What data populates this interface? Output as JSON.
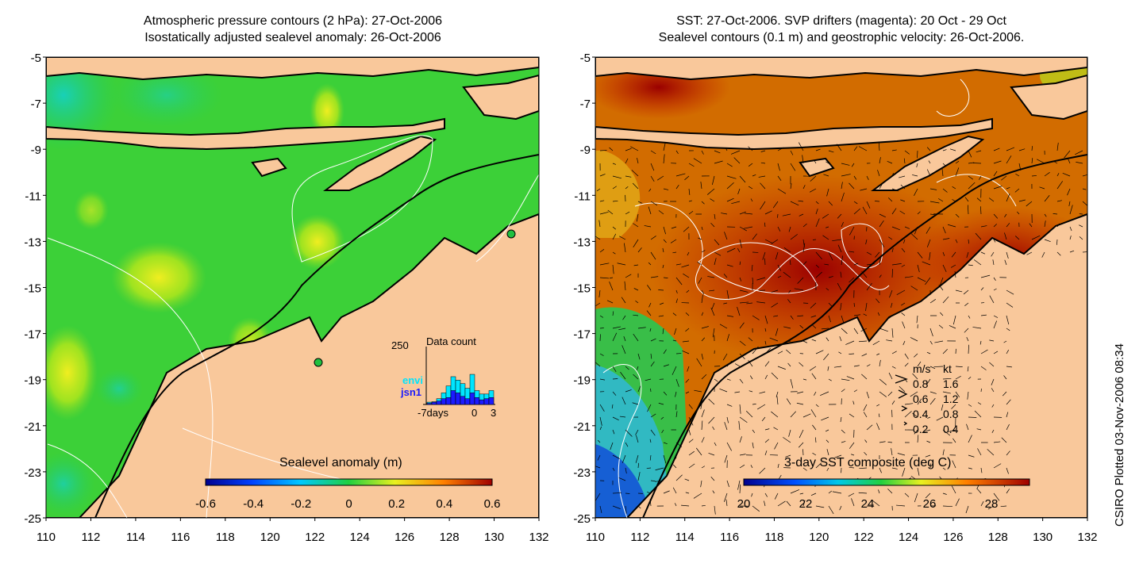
{
  "left_panel": {
    "title_line1": "Atmospheric pressure contours (2 hPa): 27-Oct-2006",
    "title_line2": "Isostatically adjusted sealevel anomaly: 26-Oct-2006",
    "colorbar_label": "Sealevel anomaly (m)",
    "colorbar_ticks": [
      "-0.6",
      "-0.4",
      "-0.2",
      "0",
      "0.2",
      "0.4",
      "0.6"
    ],
    "inset": {
      "title": "Data count",
      "ymax_label": "250",
      "xlabel_left": "-7days",
      "xlabel_zero": "0",
      "xlabel_right": "3",
      "legend_envi": "envi",
      "legend_jsn1": "jsn1",
      "envi_color": "#00e5ff",
      "jsn1_color": "#1a1aff",
      "envi_counts": [
        10,
        12,
        25,
        50,
        80,
        120,
        105,
        90,
        70,
        130,
        60,
        45,
        45,
        60
      ],
      "jsn1_counts": [
        5,
        10,
        15,
        25,
        30,
        60,
        50,
        35,
        25,
        50,
        30,
        20,
        25,
        30
      ]
    }
  },
  "right_panel": {
    "title_line1": "SST: 27-Oct-2006. SVP drifters (magenta): 20 Oct - 29 Oct",
    "title_line2": "Sealevel contours (0.1 m) and geostrophic velocity: 26-Oct-2006.",
    "colorbar_label": "3-day SST composite (deg C)",
    "colorbar_ticks": [
      "20",
      "22",
      "24",
      "26",
      "28"
    ],
    "speed_legend": {
      "header_ms": "m/s",
      "header_kt": "kt",
      "rows": [
        {
          "ms": "0.8",
          "kt": "1.6"
        },
        {
          "ms": "0.6",
          "kt": "1.2"
        },
        {
          "ms": "0.4",
          "kt": "0.8"
        },
        {
          "ms": "0.2",
          "kt": "0.4"
        }
      ]
    }
  },
  "axes": {
    "lat_ticks": [
      "-5",
      "-7",
      "-9",
      "-11",
      "-13",
      "-15",
      "-17",
      "-19",
      "-21",
      "-23",
      "-25"
    ],
    "lon_ticks": [
      "110",
      "112",
      "114",
      "116",
      "118",
      "120",
      "122",
      "124",
      "126",
      "128",
      "130",
      "132"
    ]
  },
  "credit": "CSIRO Plotted 03-Nov-2006 08:34",
  "colors": {
    "land": "#f9c89b",
    "coast": "#000000",
    "ocean_sla": "#22cc33",
    "sst_warm": "#a00000"
  }
}
